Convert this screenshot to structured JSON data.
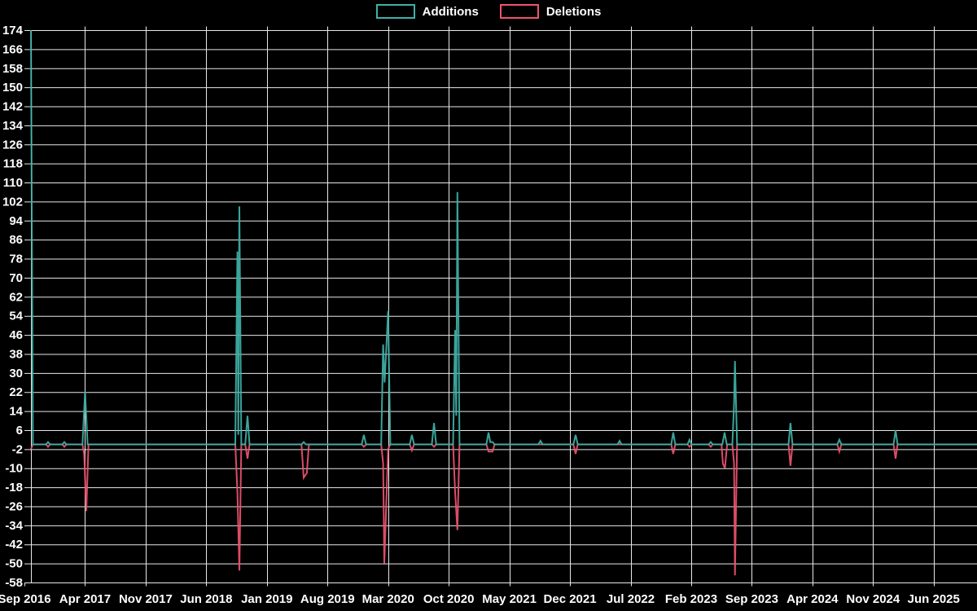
{
  "chart_data": {
    "type": "line",
    "title": "",
    "legend_position": "top-center",
    "background": "#000000",
    "text_color": "#ffffff",
    "grid": {
      "show": true,
      "color": "#e8e8e8"
    },
    "x_axis": {
      "unit": "month-year",
      "tick_labels": [
        "Sep 2016",
        "Apr 2017",
        "Nov 2017",
        "Jun 2018",
        "Jan 2019",
        "Aug 2019",
        "Mar 2020",
        "Oct 2020",
        "May 2021",
        "Dec 2021",
        "Jul 2022",
        "Feb 2023",
        "Sep 2023",
        "Apr 2024",
        "Nov 2024",
        "Jun 2025"
      ]
    },
    "y_axis": {
      "min": -58,
      "max": 174,
      "step": 8,
      "tick_labels": [
        "174",
        "166",
        "158",
        "150",
        "142",
        "134",
        "126",
        "118",
        "110",
        "102",
        "94",
        "86",
        "78",
        "70",
        "62",
        "54",
        "46",
        "38",
        "30",
        "22",
        "14",
        "6",
        "-2",
        "-10",
        "-18",
        "-26",
        "-34",
        "-42",
        "-50",
        "-58"
      ]
    },
    "x_unit": "fractional months since Sep 2016 (x ticks are every 7 months)",
    "series": [
      {
        "name": "Additions",
        "color": "#3fb1a7",
        "points": [
          [
            0.75,
            174
          ],
          [
            0.98,
            0
          ],
          [
            2.5,
            0
          ],
          [
            2.73,
            1
          ],
          [
            2.96,
            0
          ],
          [
            4.38,
            0
          ],
          [
            4.61,
            1
          ],
          [
            4.84,
            0
          ],
          [
            6.7,
            0
          ],
          [
            7.0,
            22
          ],
          [
            7.3,
            0
          ],
          [
            24.35,
            0
          ],
          [
            24.6,
            81
          ],
          [
            24.7,
            4
          ],
          [
            24.82,
            100
          ],
          [
            25.05,
            0
          ],
          [
            25.5,
            0
          ],
          [
            25.76,
            12
          ],
          [
            26.0,
            0
          ],
          [
            32.0,
            0
          ],
          [
            32.25,
            1
          ],
          [
            32.5,
            0
          ],
          [
            38.95,
            0
          ],
          [
            39.2,
            4
          ],
          [
            39.45,
            0
          ],
          [
            41.2,
            0
          ],
          [
            41.43,
            42
          ],
          [
            41.6,
            26
          ],
          [
            42.0,
            56
          ],
          [
            42.25,
            0
          ],
          [
            44.5,
            0
          ],
          [
            44.75,
            4
          ],
          [
            45.0,
            0
          ],
          [
            47.05,
            0
          ],
          [
            47.3,
            9
          ],
          [
            47.55,
            0
          ],
          [
            49.5,
            0
          ],
          [
            49.74,
            48
          ],
          [
            49.87,
            12
          ],
          [
            50.0,
            106
          ],
          [
            50.25,
            0
          ],
          [
            53.35,
            0
          ],
          [
            53.59,
            5
          ],
          [
            53.8,
            1
          ],
          [
            54.06,
            1
          ],
          [
            54.3,
            0
          ],
          [
            59.35,
            0
          ],
          [
            59.6,
            1.5
          ],
          [
            59.85,
            0
          ],
          [
            63.4,
            0
          ],
          [
            63.65,
            4
          ],
          [
            63.9,
            0
          ],
          [
            68.5,
            0
          ],
          [
            68.73,
            1.5
          ],
          [
            68.95,
            0
          ],
          [
            74.7,
            0
          ],
          [
            74.93,
            5
          ],
          [
            75.16,
            0
          ],
          [
            76.58,
            0
          ],
          [
            76.81,
            2
          ],
          [
            77.04,
            0
          ],
          [
            79.03,
            0
          ],
          [
            79.26,
            1
          ],
          [
            79.49,
            0
          ],
          [
            80.6,
            0
          ],
          [
            80.86,
            5
          ],
          [
            81.1,
            0
          ],
          [
            81.75,
            0
          ],
          [
            81.95,
            17
          ],
          [
            82.05,
            35
          ],
          [
            82.3,
            0
          ],
          [
            88.24,
            0
          ],
          [
            88.47,
            9
          ],
          [
            88.7,
            0
          ],
          [
            93.88,
            0
          ],
          [
            94.11,
            2
          ],
          [
            94.34,
            0
          ],
          [
            100.37,
            0
          ],
          [
            100.6,
            6
          ],
          [
            100.83,
            0
          ],
          [
            110,
            0
          ]
        ]
      },
      {
        "name": "Deletions",
        "color": "#ee5370",
        "points": [
          [
            0.75,
            -2
          ],
          [
            0.98,
            0
          ],
          [
            2.5,
            0
          ],
          [
            2.73,
            -1
          ],
          [
            2.96,
            0
          ],
          [
            4.38,
            0
          ],
          [
            4.61,
            -1
          ],
          [
            4.84,
            0
          ],
          [
            6.7,
            0
          ],
          [
            6.9,
            -4
          ],
          [
            7.15,
            -28
          ],
          [
            7.4,
            0
          ],
          [
            24.35,
            0
          ],
          [
            24.6,
            -20
          ],
          [
            24.82,
            -53
          ],
          [
            25.05,
            0
          ],
          [
            25.5,
            0
          ],
          [
            25.76,
            -6
          ],
          [
            26.0,
            0
          ],
          [
            32.0,
            0
          ],
          [
            32.25,
            -14
          ],
          [
            32.62,
            -12
          ],
          [
            32.85,
            0
          ],
          [
            38.95,
            0
          ],
          [
            39.2,
            -1
          ],
          [
            39.45,
            0
          ],
          [
            41.2,
            0
          ],
          [
            41.43,
            -8
          ],
          [
            41.56,
            -50
          ],
          [
            42.0,
            -2
          ],
          [
            42.25,
            0
          ],
          [
            44.5,
            0
          ],
          [
            44.75,
            -2.5
          ],
          [
            45.0,
            0
          ],
          [
            47.05,
            0
          ],
          [
            47.3,
            -1
          ],
          [
            47.55,
            0
          ],
          [
            49.5,
            0
          ],
          [
            49.74,
            -20
          ],
          [
            50.0,
            -36
          ],
          [
            50.25,
            0
          ],
          [
            53.35,
            0
          ],
          [
            53.59,
            -3
          ],
          [
            54.06,
            -3
          ],
          [
            54.3,
            0
          ],
          [
            63.4,
            0
          ],
          [
            63.65,
            -4
          ],
          [
            63.9,
            0
          ],
          [
            74.7,
            0
          ],
          [
            74.93,
            -4
          ],
          [
            75.16,
            0
          ],
          [
            76.58,
            0
          ],
          [
            76.81,
            -1
          ],
          [
            77.04,
            0
          ],
          [
            79.03,
            0
          ],
          [
            79.26,
            -1
          ],
          [
            79.49,
            0
          ],
          [
            80.5,
            0
          ],
          [
            80.66,
            -8
          ],
          [
            80.9,
            -10
          ],
          [
            81.15,
            0
          ],
          [
            81.75,
            0
          ],
          [
            81.95,
            -8
          ],
          [
            82.05,
            -55
          ],
          [
            82.3,
            0
          ],
          [
            88.24,
            0
          ],
          [
            88.47,
            -9
          ],
          [
            88.7,
            0
          ],
          [
            93.88,
            0
          ],
          [
            94.11,
            -3
          ],
          [
            94.34,
            0
          ],
          [
            100.37,
            0
          ],
          [
            100.6,
            -6
          ],
          [
            100.83,
            0
          ],
          [
            110,
            0
          ]
        ]
      }
    ],
    "key_events": [
      {
        "date": "Sep 2016",
        "additions": 174,
        "deletions": -2
      },
      {
        "date": "Apr 2017",
        "additions": 22,
        "deletions": -28
      },
      {
        "date": "Oct 2018",
        "additions": 100,
        "deletions": -53
      },
      {
        "date": "Nov 2018",
        "additions": 12,
        "deletions": -6
      },
      {
        "date": "May 2019",
        "additions": 1,
        "deletions": -14
      },
      {
        "date": "Mar 2020",
        "additions": 56,
        "deletions": -50
      },
      {
        "date": "Nov 2020",
        "additions": 106,
        "deletions": -36
      },
      {
        "date": "Jul 2023",
        "additions": 35,
        "deletions": -55
      },
      {
        "date": "Jan 2024",
        "additions": 9,
        "deletions": -9
      },
      {
        "date": "Aug 2024",
        "additions": 2,
        "deletions": -3
      },
      {
        "date": "Mar 2025",
        "additions": 6,
        "deletions": -6
      }
    ]
  }
}
